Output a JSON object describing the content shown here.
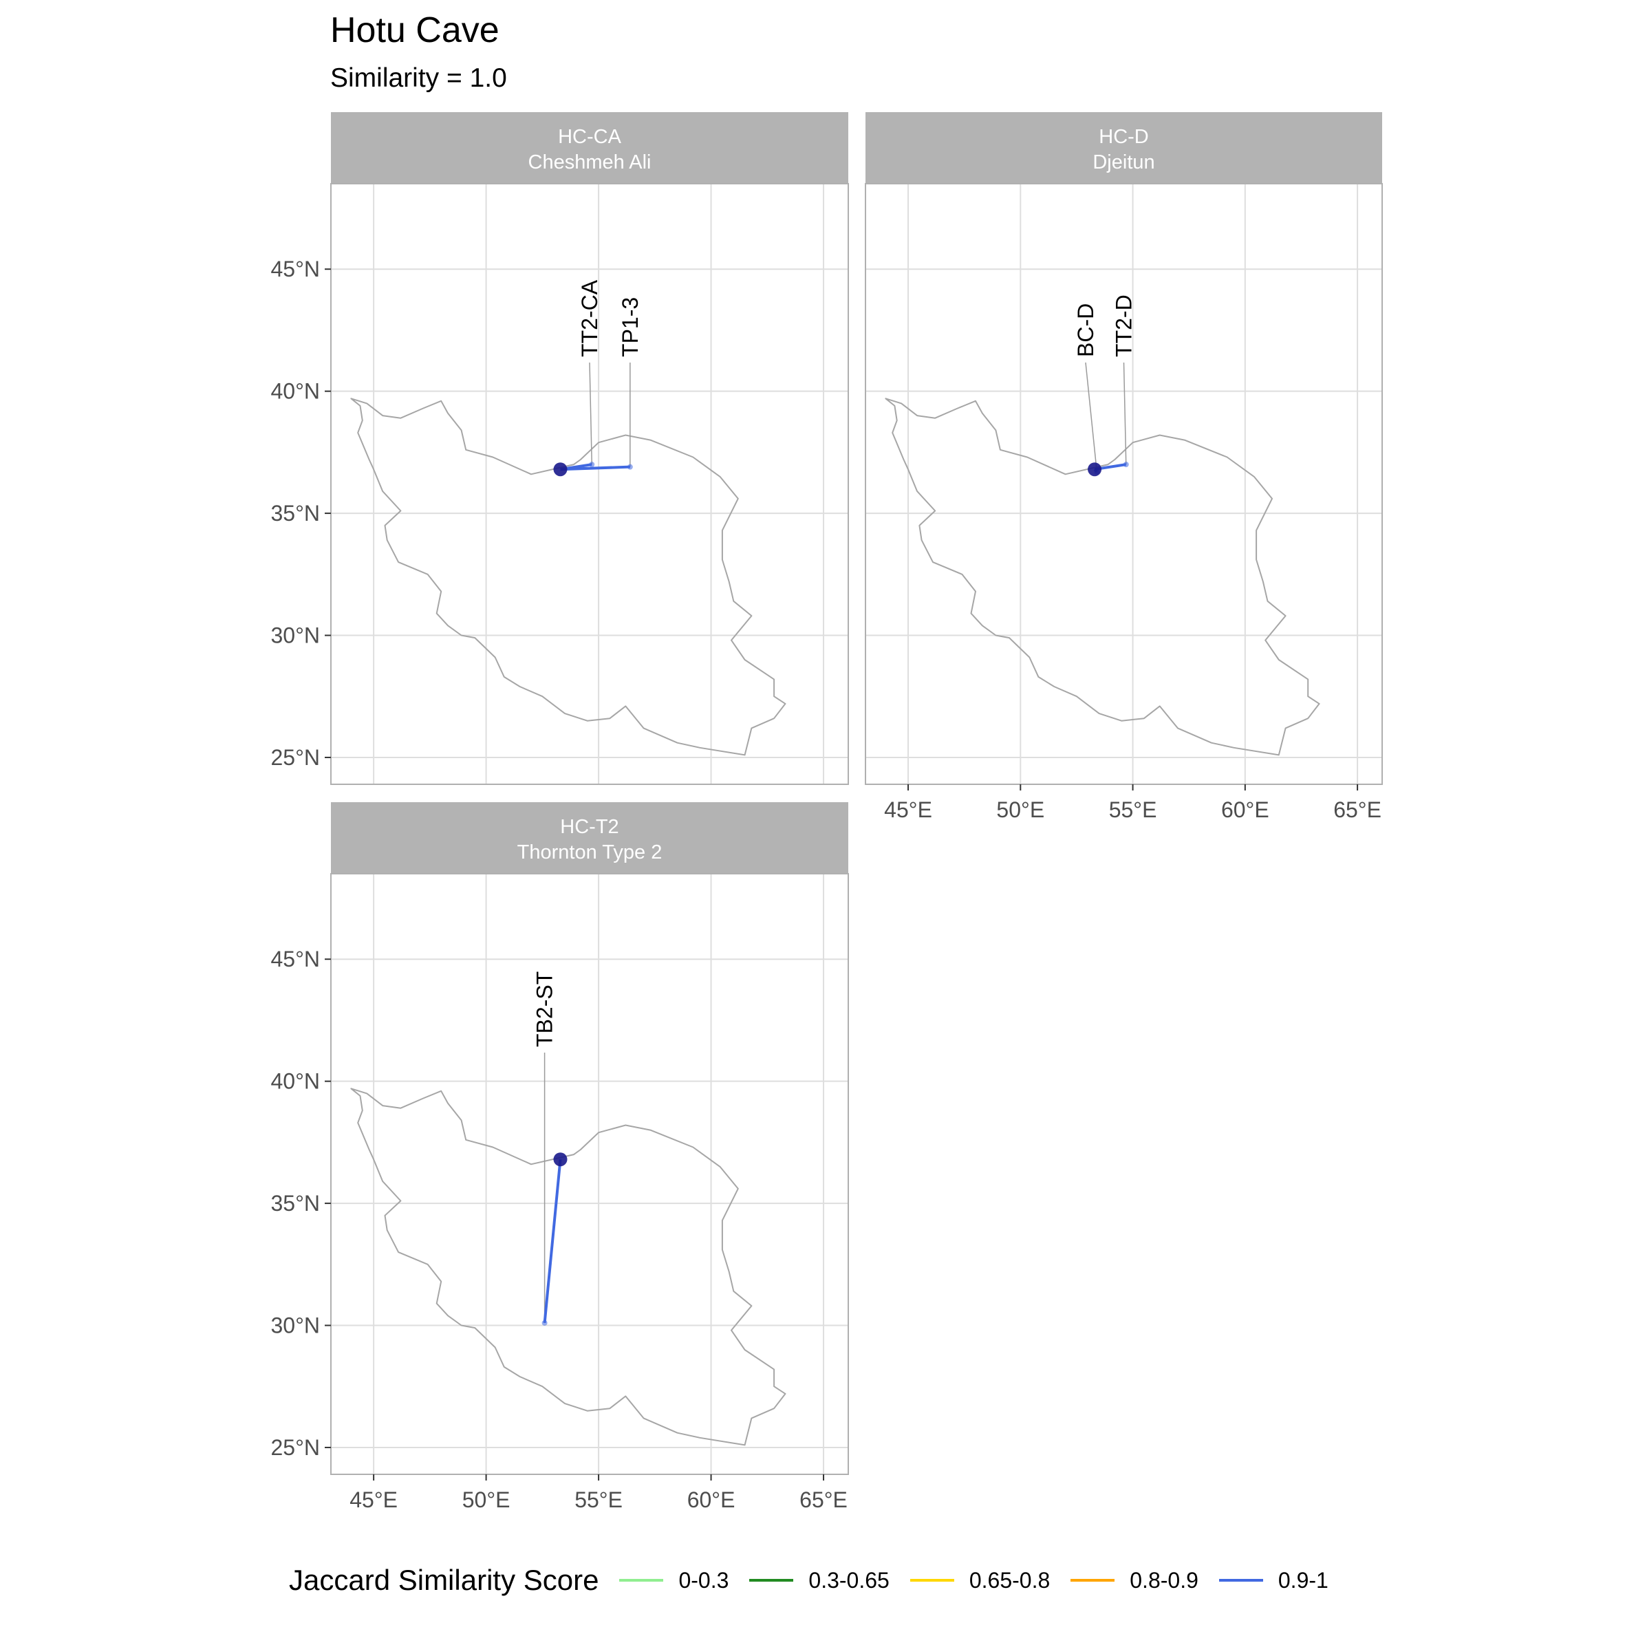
{
  "map": {
    "title": "Hotu Cave",
    "subtitle": "Similarity = 1.0",
    "x_ticks": [
      "45°E",
      "50°E",
      "55°E",
      "60°E",
      "65°E"
    ],
    "y_ticks": [
      "45°N",
      "40°N",
      "35°N",
      "30°N",
      "25°N"
    ],
    "colors": {
      "strip_bg": "#b3b3b3",
      "strip_text": "#ffffff",
      "grid": "#dedede",
      "border": "#b0b0b0",
      "country_outline": "#a6a6a6",
      "site_point": "#1a1a8c",
      "connection": "#4169e1"
    },
    "panels": [
      {
        "code": "HC-CA",
        "name": "Cheshmeh Ali",
        "show_x_axis": false,
        "show_y_axis": true,
        "site": {
          "lon": 53.3,
          "lat": 36.8
        },
        "links": [
          {
            "label": "TT2-CA",
            "lon": 54.7,
            "lat": 37.0,
            "label_lon": 54.6,
            "score": "0.9-1"
          },
          {
            "label": "TP1-3",
            "lon": 56.4,
            "lat": 36.9,
            "label_lon": 56.4,
            "score": "0.9-1"
          }
        ]
      },
      {
        "code": "HC-D",
        "name": "Djeitun",
        "show_x_axis": true,
        "show_y_axis": false,
        "site": {
          "lon": 53.3,
          "lat": 36.8
        },
        "links": [
          {
            "label": "BC-D",
            "lon": 53.4,
            "lat": 36.7,
            "label_lon": 52.9,
            "score": "0.9-1"
          },
          {
            "label": "TT2-D",
            "lon": 54.7,
            "lat": 37.0,
            "label_lon": 54.6,
            "score": "0.9-1"
          }
        ]
      },
      {
        "code": "HC-T2",
        "name": "Thornton Type 2",
        "show_x_axis": true,
        "show_y_axis": true,
        "site": {
          "lon": 53.3,
          "lat": 36.8
        },
        "links": [
          {
            "label": "TB2-ST",
            "lon": 52.6,
            "lat": 30.1,
            "label_lon": 52.6,
            "score": "0.9-1"
          }
        ]
      }
    ],
    "outline": [
      [
        44.0,
        39.7
      ],
      [
        44.4,
        39.4
      ],
      [
        44.5,
        38.8
      ],
      [
        44.3,
        38.3
      ],
      [
        44.8,
        37.2
      ],
      [
        45.0,
        36.8
      ],
      [
        45.4,
        35.9
      ],
      [
        46.2,
        35.1
      ],
      [
        45.5,
        34.5
      ],
      [
        45.6,
        33.9
      ],
      [
        46.1,
        33.0
      ],
      [
        47.4,
        32.5
      ],
      [
        48.0,
        31.8
      ],
      [
        47.8,
        30.9
      ],
      [
        48.3,
        30.4
      ],
      [
        48.9,
        30.0
      ],
      [
        49.5,
        29.9
      ],
      [
        50.4,
        29.1
      ],
      [
        50.8,
        28.3
      ],
      [
        51.5,
        27.9
      ],
      [
        52.5,
        27.5
      ],
      [
        53.5,
        26.8
      ],
      [
        54.5,
        26.5
      ],
      [
        55.5,
        26.6
      ],
      [
        56.2,
        27.1
      ],
      [
        57.0,
        26.2
      ],
      [
        58.5,
        25.6
      ],
      [
        59.5,
        25.4
      ],
      [
        61.5,
        25.1
      ],
      [
        61.8,
        26.2
      ],
      [
        62.8,
        26.6
      ],
      [
        63.3,
        27.2
      ],
      [
        62.8,
        27.5
      ],
      [
        62.8,
        28.2
      ],
      [
        61.5,
        29.0
      ],
      [
        60.9,
        29.8
      ],
      [
        61.8,
        30.8
      ],
      [
        61.0,
        31.4
      ],
      [
        60.8,
        32.2
      ],
      [
        60.5,
        33.1
      ],
      [
        60.5,
        34.3
      ],
      [
        61.2,
        35.6
      ],
      [
        60.4,
        36.5
      ],
      [
        59.2,
        37.3
      ],
      [
        57.3,
        38.0
      ],
      [
        56.2,
        38.2
      ],
      [
        55.0,
        37.9
      ],
      [
        54.2,
        37.2
      ],
      [
        53.9,
        37.0
      ],
      [
        52.0,
        36.6
      ],
      [
        50.3,
        37.3
      ],
      [
        49.1,
        37.6
      ],
      [
        48.9,
        38.4
      ],
      [
        48.3,
        39.1
      ],
      [
        48.0,
        39.6
      ],
      [
        47.2,
        39.3
      ],
      [
        46.2,
        38.9
      ],
      [
        45.4,
        39.0
      ],
      [
        44.7,
        39.5
      ],
      [
        44.0,
        39.7
      ]
    ],
    "legend": {
      "title": "Jaccard Similarity Score",
      "items": [
        {
          "label": "0-0.3",
          "color": "#90ee90"
        },
        {
          "label": "0.3-0.65",
          "color": "#228b22"
        },
        {
          "label": "0.65-0.8",
          "color": "#ffd700"
        },
        {
          "label": "0.8-0.9",
          "color": "#ffa500"
        },
        {
          "label": "0.9-1",
          "color": "#4169e1"
        }
      ]
    }
  }
}
